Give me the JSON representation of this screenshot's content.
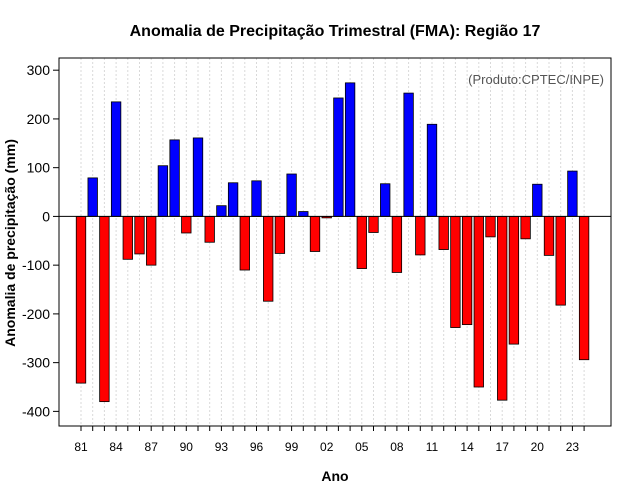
{
  "chart_data": {
    "type": "bar",
    "title": "Anomalia de Precipitação Trimestral (FMA): Região 17",
    "xlabel": "Ano",
    "ylabel": "Anomalia de precipitação (mm)",
    "annotation": "(Produto:CPTEC/INPE)",
    "ylim": [
      -430,
      325
    ],
    "yticks": [
      -400,
      -300,
      -200,
      -100,
      0,
      100,
      200,
      300
    ],
    "xtick_labels": [
      "81",
      "84",
      "87",
      "90",
      "93",
      "96",
      "99",
      "02",
      "05",
      "08",
      "11",
      "14",
      "17",
      "20",
      "23"
    ],
    "categories": [
      "1981",
      "1982",
      "1983",
      "1984",
      "1985",
      "1986",
      "1987",
      "1988",
      "1989",
      "1990",
      "1991",
      "1992",
      "1993",
      "1994",
      "1995",
      "1996",
      "1997",
      "1998",
      "1999",
      "2000",
      "2001",
      "2002",
      "2003",
      "2004",
      "2005",
      "2006",
      "2007",
      "2008",
      "2009",
      "2010",
      "2011",
      "2012",
      "2013",
      "2014",
      "2015",
      "2016",
      "2017",
      "2018",
      "2019",
      "2020",
      "2021",
      "2022",
      "2023",
      "2024"
    ],
    "values": [
      -342,
      79,
      -380,
      235,
      -88,
      -77,
      -100,
      104,
      157,
      -34,
      161,
      -53,
      22,
      69,
      -110,
      73,
      -174,
      -76,
      87,
      10,
      -72,
      -3,
      243,
      274,
      -107,
      -33,
      67,
      -115,
      253,
      -79,
      189,
      -68,
      -228,
      -222,
      -350,
      -42,
      -377,
      -262,
      -46,
      66,
      -80,
      -182,
      93,
      -294
    ],
    "colors": {
      "positive": "#0000ff",
      "negative": "#ff0000",
      "grid": "#d9d9d9",
      "zero_line": "#000000"
    }
  }
}
